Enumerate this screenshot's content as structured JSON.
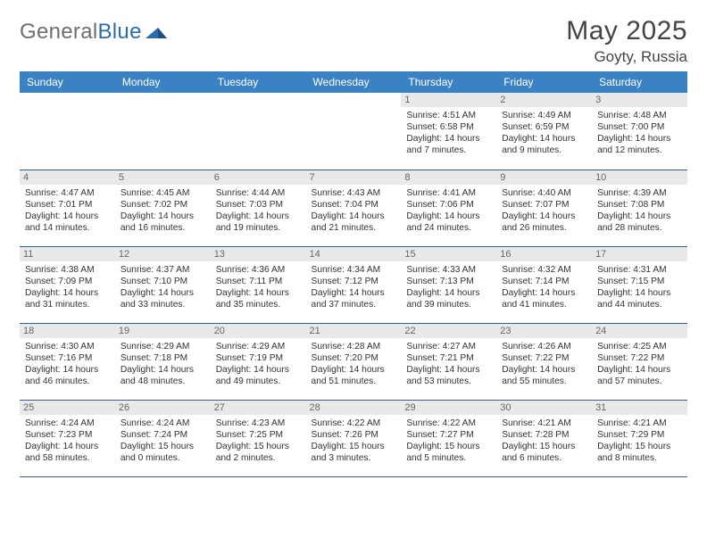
{
  "brand": {
    "name_gray": "General",
    "name_blue": "Blue"
  },
  "title": {
    "month_year": "May 2025",
    "location": "Goyty, Russia"
  },
  "colors": {
    "header_bg": "#3b82c4",
    "header_fg": "#ffffff",
    "daynum_bg": "#e9e9e9",
    "daynum_fg": "#666666",
    "cell_border": "#2f5f8f",
    "logo_blue": "#2b6cb0",
    "logo_gray": "#6e6e6e",
    "text": "#333333",
    "background": "#ffffff"
  },
  "typography": {
    "title_fontsize_pt": 22,
    "location_fontsize_pt": 13,
    "header_fontsize_pt": 9,
    "body_fontsize_pt": 8,
    "font_family": "Arial"
  },
  "calendar": {
    "type": "table",
    "columns": [
      "Sunday",
      "Monday",
      "Tuesday",
      "Wednesday",
      "Thursday",
      "Friday",
      "Saturday"
    ],
    "weeks": [
      [
        {
          "n": "",
          "l1": "",
          "l2": "",
          "l3": "",
          "l4": ""
        },
        {
          "n": "",
          "l1": "",
          "l2": "",
          "l3": "",
          "l4": ""
        },
        {
          "n": "",
          "l1": "",
          "l2": "",
          "l3": "",
          "l4": ""
        },
        {
          "n": "",
          "l1": "",
          "l2": "",
          "l3": "",
          "l4": ""
        },
        {
          "n": "1",
          "l1": "Sunrise: 4:51 AM",
          "l2": "Sunset: 6:58 PM",
          "l3": "Daylight: 14 hours",
          "l4": "and 7 minutes."
        },
        {
          "n": "2",
          "l1": "Sunrise: 4:49 AM",
          "l2": "Sunset: 6:59 PM",
          "l3": "Daylight: 14 hours",
          "l4": "and 9 minutes."
        },
        {
          "n": "3",
          "l1": "Sunrise: 4:48 AM",
          "l2": "Sunset: 7:00 PM",
          "l3": "Daylight: 14 hours",
          "l4": "and 12 minutes."
        }
      ],
      [
        {
          "n": "4",
          "l1": "Sunrise: 4:47 AM",
          "l2": "Sunset: 7:01 PM",
          "l3": "Daylight: 14 hours",
          "l4": "and 14 minutes."
        },
        {
          "n": "5",
          "l1": "Sunrise: 4:45 AM",
          "l2": "Sunset: 7:02 PM",
          "l3": "Daylight: 14 hours",
          "l4": "and 16 minutes."
        },
        {
          "n": "6",
          "l1": "Sunrise: 4:44 AM",
          "l2": "Sunset: 7:03 PM",
          "l3": "Daylight: 14 hours",
          "l4": "and 19 minutes."
        },
        {
          "n": "7",
          "l1": "Sunrise: 4:43 AM",
          "l2": "Sunset: 7:04 PM",
          "l3": "Daylight: 14 hours",
          "l4": "and 21 minutes."
        },
        {
          "n": "8",
          "l1": "Sunrise: 4:41 AM",
          "l2": "Sunset: 7:06 PM",
          "l3": "Daylight: 14 hours",
          "l4": "and 24 minutes."
        },
        {
          "n": "9",
          "l1": "Sunrise: 4:40 AM",
          "l2": "Sunset: 7:07 PM",
          "l3": "Daylight: 14 hours",
          "l4": "and 26 minutes."
        },
        {
          "n": "10",
          "l1": "Sunrise: 4:39 AM",
          "l2": "Sunset: 7:08 PM",
          "l3": "Daylight: 14 hours",
          "l4": "and 28 minutes."
        }
      ],
      [
        {
          "n": "11",
          "l1": "Sunrise: 4:38 AM",
          "l2": "Sunset: 7:09 PM",
          "l3": "Daylight: 14 hours",
          "l4": "and 31 minutes."
        },
        {
          "n": "12",
          "l1": "Sunrise: 4:37 AM",
          "l2": "Sunset: 7:10 PM",
          "l3": "Daylight: 14 hours",
          "l4": "and 33 minutes."
        },
        {
          "n": "13",
          "l1": "Sunrise: 4:36 AM",
          "l2": "Sunset: 7:11 PM",
          "l3": "Daylight: 14 hours",
          "l4": "and 35 minutes."
        },
        {
          "n": "14",
          "l1": "Sunrise: 4:34 AM",
          "l2": "Sunset: 7:12 PM",
          "l3": "Daylight: 14 hours",
          "l4": "and 37 minutes."
        },
        {
          "n": "15",
          "l1": "Sunrise: 4:33 AM",
          "l2": "Sunset: 7:13 PM",
          "l3": "Daylight: 14 hours",
          "l4": "and 39 minutes."
        },
        {
          "n": "16",
          "l1": "Sunrise: 4:32 AM",
          "l2": "Sunset: 7:14 PM",
          "l3": "Daylight: 14 hours",
          "l4": "and 41 minutes."
        },
        {
          "n": "17",
          "l1": "Sunrise: 4:31 AM",
          "l2": "Sunset: 7:15 PM",
          "l3": "Daylight: 14 hours",
          "l4": "and 44 minutes."
        }
      ],
      [
        {
          "n": "18",
          "l1": "Sunrise: 4:30 AM",
          "l2": "Sunset: 7:16 PM",
          "l3": "Daylight: 14 hours",
          "l4": "and 46 minutes."
        },
        {
          "n": "19",
          "l1": "Sunrise: 4:29 AM",
          "l2": "Sunset: 7:18 PM",
          "l3": "Daylight: 14 hours",
          "l4": "and 48 minutes."
        },
        {
          "n": "20",
          "l1": "Sunrise: 4:29 AM",
          "l2": "Sunset: 7:19 PM",
          "l3": "Daylight: 14 hours",
          "l4": "and 49 minutes."
        },
        {
          "n": "21",
          "l1": "Sunrise: 4:28 AM",
          "l2": "Sunset: 7:20 PM",
          "l3": "Daylight: 14 hours",
          "l4": "and 51 minutes."
        },
        {
          "n": "22",
          "l1": "Sunrise: 4:27 AM",
          "l2": "Sunset: 7:21 PM",
          "l3": "Daylight: 14 hours",
          "l4": "and 53 minutes."
        },
        {
          "n": "23",
          "l1": "Sunrise: 4:26 AM",
          "l2": "Sunset: 7:22 PM",
          "l3": "Daylight: 14 hours",
          "l4": "and 55 minutes."
        },
        {
          "n": "24",
          "l1": "Sunrise: 4:25 AM",
          "l2": "Sunset: 7:22 PM",
          "l3": "Daylight: 14 hours",
          "l4": "and 57 minutes."
        }
      ],
      [
        {
          "n": "25",
          "l1": "Sunrise: 4:24 AM",
          "l2": "Sunset: 7:23 PM",
          "l3": "Daylight: 14 hours",
          "l4": "and 58 minutes."
        },
        {
          "n": "26",
          "l1": "Sunrise: 4:24 AM",
          "l2": "Sunset: 7:24 PM",
          "l3": "Daylight: 15 hours",
          "l4": "and 0 minutes."
        },
        {
          "n": "27",
          "l1": "Sunrise: 4:23 AM",
          "l2": "Sunset: 7:25 PM",
          "l3": "Daylight: 15 hours",
          "l4": "and 2 minutes."
        },
        {
          "n": "28",
          "l1": "Sunrise: 4:22 AM",
          "l2": "Sunset: 7:26 PM",
          "l3": "Daylight: 15 hours",
          "l4": "and 3 minutes."
        },
        {
          "n": "29",
          "l1": "Sunrise: 4:22 AM",
          "l2": "Sunset: 7:27 PM",
          "l3": "Daylight: 15 hours",
          "l4": "and 5 minutes."
        },
        {
          "n": "30",
          "l1": "Sunrise: 4:21 AM",
          "l2": "Sunset: 7:28 PM",
          "l3": "Daylight: 15 hours",
          "l4": "and 6 minutes."
        },
        {
          "n": "31",
          "l1": "Sunrise: 4:21 AM",
          "l2": "Sunset: 7:29 PM",
          "l3": "Daylight: 15 hours",
          "l4": "and 8 minutes."
        }
      ]
    ]
  }
}
